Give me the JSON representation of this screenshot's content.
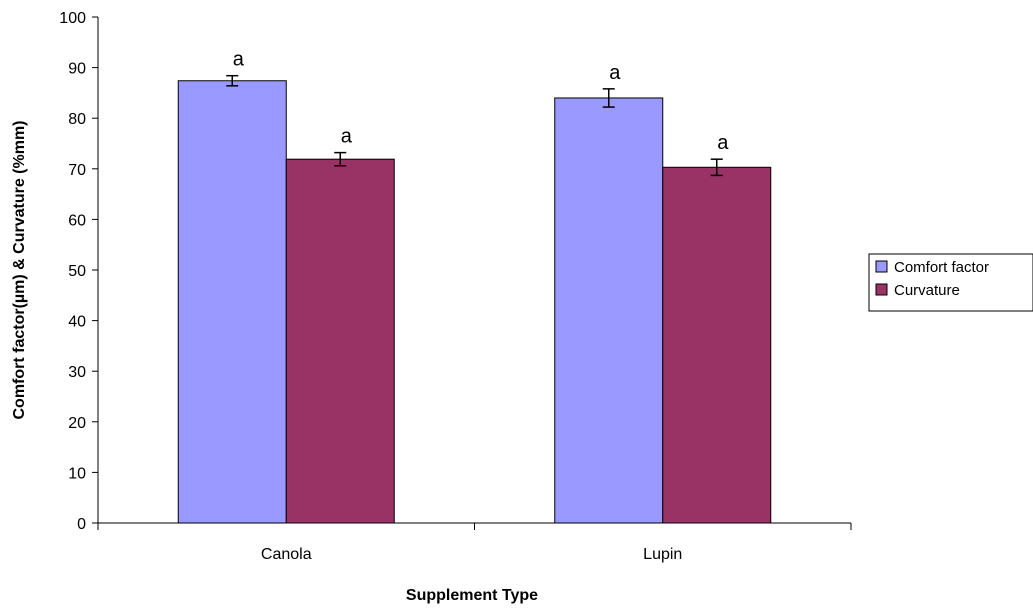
{
  "chart_data": {
    "type": "bar",
    "categories": [
      "Canola",
      "Lupin"
    ],
    "series": [
      {
        "name": "Comfort factor",
        "values": [
          87.4,
          84.0
        ],
        "errors": [
          1.0,
          1.8
        ],
        "labels": [
          "a",
          "a"
        ],
        "color": "#9999FF"
      },
      {
        "name": "Curvature",
        "values": [
          71.9,
          70.3
        ],
        "errors": [
          1.3,
          1.6
        ],
        "labels": [
          "a",
          "a"
        ],
        "color": "#993366"
      }
    ],
    "xlabel": "Supplement Type",
    "ylabel": "Comfort factor(µm) & Curvature (%mm)",
    "ylim": [
      0,
      100
    ],
    "yticks": [
      "0",
      "10",
      "20",
      "30",
      "40",
      "50",
      "60",
      "70",
      "80",
      "90",
      "100"
    ],
    "grid": false,
    "legend_position": "right"
  }
}
